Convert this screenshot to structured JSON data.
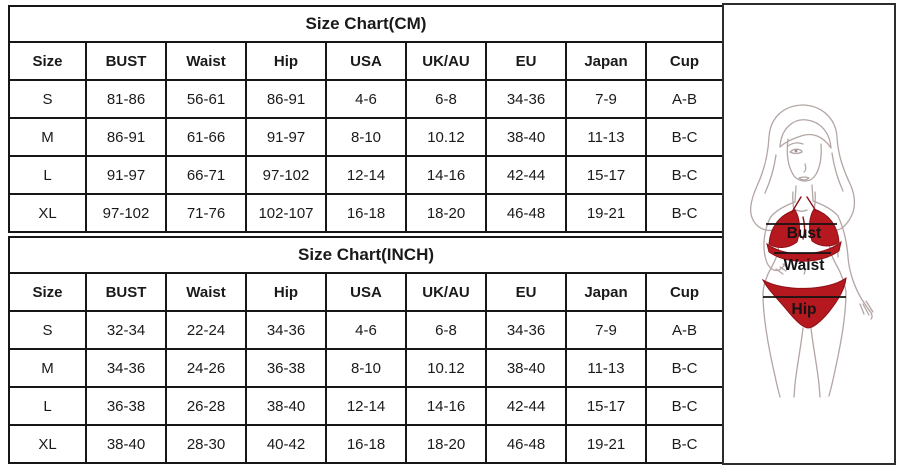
{
  "chart_data": [
    {
      "type": "table",
      "title": "Size Chart(CM)",
      "columns": [
        "Size",
        "BUST",
        "Waist",
        "Hip",
        "USA",
        "UK/AU",
        "EU",
        "Japan",
        "Cup"
      ],
      "rows": [
        [
          "S",
          "81-86",
          "56-61",
          "86-91",
          "4-6",
          "6-8",
          "34-36",
          "7-9",
          "A-B"
        ],
        [
          "M",
          "86-91",
          "61-66",
          "91-97",
          "8-10",
          "10.12",
          "38-40",
          "11-13",
          "B-C"
        ],
        [
          "L",
          "91-97",
          "66-71",
          "97-102",
          "12-14",
          "14-16",
          "42-44",
          "15-17",
          "B-C"
        ],
        [
          "XL",
          "97-102",
          "71-76",
          "102-107",
          "16-18",
          "18-20",
          "46-48",
          "19-21",
          "B-C"
        ]
      ]
    },
    {
      "type": "table",
      "title": "Size Chart(INCH)",
      "columns": [
        "Size",
        "BUST",
        "Waist",
        "Hip",
        "USA",
        "UK/AU",
        "EU",
        "Japan",
        "Cup"
      ],
      "rows": [
        [
          "S",
          "32-34",
          "22-24",
          "34-36",
          "4-6",
          "6-8",
          "34-36",
          "7-9",
          "A-B"
        ],
        [
          "M",
          "34-36",
          "24-26",
          "36-38",
          "8-10",
          "10.12",
          "38-40",
          "11-13",
          "B-C"
        ],
        [
          "L",
          "36-38",
          "26-28",
          "38-40",
          "12-14",
          "14-16",
          "42-44",
          "15-17",
          "B-C"
        ],
        [
          "XL",
          "38-40",
          "28-30",
          "40-42",
          "16-18",
          "18-20",
          "46-48",
          "19-21",
          "B-C"
        ]
      ]
    }
  ],
  "figure": {
    "labels": {
      "bust": "Bust",
      "waist": "Waist",
      "hip": "Hip"
    },
    "bikini_color": "#b5181e",
    "bikini_stroke": "#8d1016",
    "outline_color": "#b3a6a4",
    "measure_line_color": "#141414"
  }
}
